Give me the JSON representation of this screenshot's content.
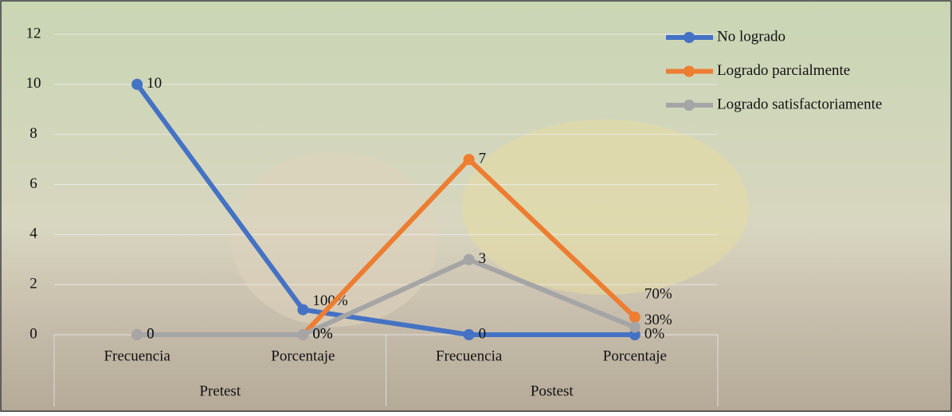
{
  "chart_data": {
    "type": "line",
    "categories": [
      "Frecuencia",
      "Porcentaje",
      "Frecuencia",
      "Porcentaje"
    ],
    "category_groups": [
      "Pretest",
      "Postest"
    ],
    "series": [
      {
        "name": "No logrado",
        "color": "#4472c4",
        "values": [
          10,
          1,
          0,
          0
        ],
        "value_labels": [
          "10",
          "100%",
          "0",
          "0%"
        ]
      },
      {
        "name": "Logrado parcialmente",
        "color": "#ed7d31",
        "values": [
          0,
          0,
          7,
          0.7
        ],
        "value_labels": [
          "0",
          "0%",
          "7",
          "70%"
        ]
      },
      {
        "name": "Logrado satisfactoriamente",
        "color": "#a5a5a5",
        "values": [
          0,
          0,
          3,
          0.3
        ],
        "value_labels": [
          "0",
          "0%",
          "3",
          "30%"
        ]
      }
    ],
    "ylim": [
      0,
      12
    ],
    "yticks": [
      0,
      2,
      4,
      6,
      8,
      10,
      12
    ],
    "grid": true,
    "legend": "top-right"
  }
}
